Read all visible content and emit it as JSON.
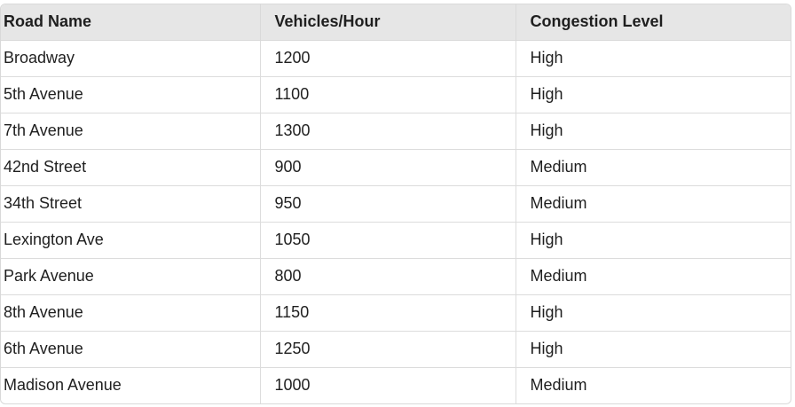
{
  "table": {
    "headers": [
      "Road Name",
      "Vehicles/Hour",
      "Congestion Level"
    ],
    "rows": [
      [
        "Broadway",
        "1200",
        "High"
      ],
      [
        "5th Avenue",
        "1100",
        "High"
      ],
      [
        "7th Avenue",
        "1300",
        "High"
      ],
      [
        "42nd Street",
        "900",
        "Medium"
      ],
      [
        "34th Street",
        "950",
        "Medium"
      ],
      [
        "Lexington Ave",
        "1050",
        "High"
      ],
      [
        "Park Avenue",
        "800",
        "Medium"
      ],
      [
        "8th Avenue",
        "1150",
        "High"
      ],
      [
        "6th Avenue",
        "1250",
        "High"
      ],
      [
        "Madison Avenue",
        "1000",
        "Medium"
      ]
    ]
  }
}
